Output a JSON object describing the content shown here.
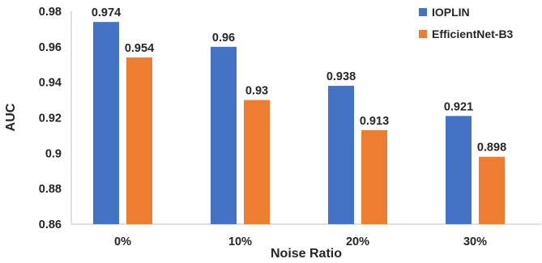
{
  "chart_data": {
    "type": "bar",
    "title": "",
    "xlabel": "Noise Ratio",
    "ylabel": "AUC",
    "categories": [
      "0%",
      "10%",
      "20%",
      "30%"
    ],
    "series": [
      {
        "name": "IOPLIN",
        "values": [
          0.974,
          0.96,
          0.938,
          0.921
        ],
        "labels": [
          "0.974",
          "0.96",
          "0.938",
          "0.921"
        ],
        "color": "#4472C4"
      },
      {
        "name": "EfficientNet-B3",
        "values": [
          0.954,
          0.93,
          0.913,
          0.898
        ],
        "labels": [
          "0.954",
          "0.93",
          "0.913",
          "0.898"
        ],
        "color": "#ED7D31"
      }
    ],
    "ylim": [
      0.86,
      0.98
    ],
    "yticks": [
      0.86,
      0.88,
      0.9,
      0.92,
      0.94,
      0.96,
      0.98
    ],
    "ytick_labels": [
      "0.86",
      "0.88",
      "0.9",
      "0.92",
      "0.94",
      "0.96",
      "0.98"
    ],
    "grid": false,
    "legend_position": "top-right"
  }
}
